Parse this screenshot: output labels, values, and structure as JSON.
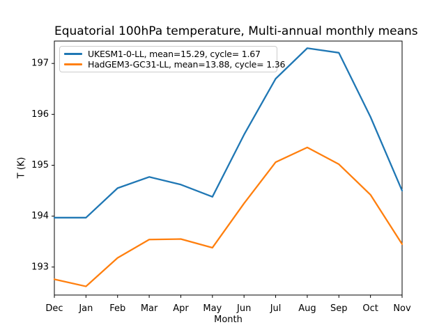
{
  "chart_data": {
    "type": "line",
    "title": "Equatorial 100hPa temperature, Multi-annual monthly means",
    "xlabel": "Month",
    "ylabel": "T (K)",
    "categories": [
      "Dec",
      "Jan",
      "Feb",
      "Mar",
      "Apr",
      "May",
      "Jun",
      "Jul",
      "Aug",
      "Sep",
      "Oct",
      "Nov"
    ],
    "series": [
      {
        "name": "UKESM1-0-LL, mean=15.29, cycle= 1.67",
        "color": "#1f77b4",
        "values": [
          193.97,
          193.97,
          194.55,
          194.77,
          194.62,
          194.38,
          195.6,
          196.7,
          197.3,
          197.21,
          195.95,
          194.5
        ]
      },
      {
        "name": "HadGEM3-GC31-LL, mean=13.88, cycle= 1.36",
        "color": "#ff7f0e",
        "values": [
          192.76,
          192.62,
          193.18,
          193.54,
          193.55,
          193.38,
          194.25,
          195.06,
          195.35,
          195.02,
          194.42,
          193.45
        ]
      }
    ],
    "ylim": [
      192.45,
      197.44
    ],
    "yticks": [
      193,
      194,
      195,
      196,
      197
    ],
    "grid": false,
    "legend_position": "upper left",
    "axis_color": "#000000",
    "background_color": "#ffffff"
  }
}
